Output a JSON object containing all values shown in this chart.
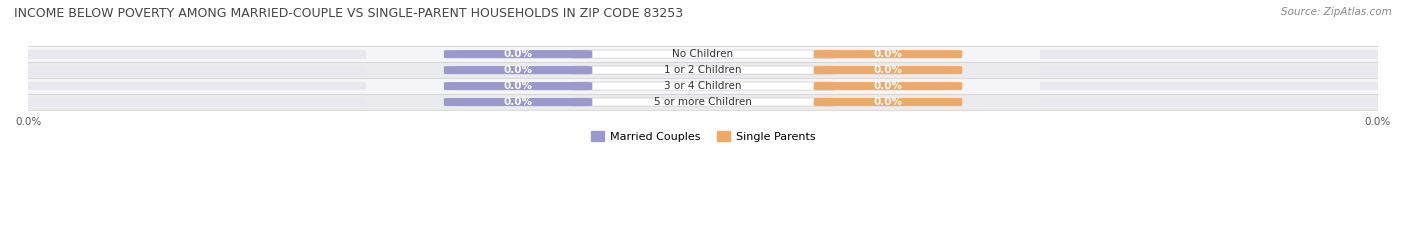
{
  "title": "INCOME BELOW POVERTY AMONG MARRIED-COUPLE VS SINGLE-PARENT HOUSEHOLDS IN ZIP CODE 83253",
  "source": "Source: ZipAtlas.com",
  "categories": [
    "No Children",
    "1 or 2 Children",
    "3 or 4 Children",
    "5 or more Children"
  ],
  "married_values": [
    0.0,
    0.0,
    0.0,
    0.0
  ],
  "single_values": [
    0.0,
    0.0,
    0.0,
    0.0
  ],
  "married_color": "#9999cc",
  "single_color": "#f0a868",
  "bar_bg_color": "#e8e8ee",
  "bar_height": 0.55,
  "label_fontsize": 7.5,
  "title_fontsize": 9,
  "source_fontsize": 7.5,
  "axis_label_fontsize": 7.5,
  "legend_fontsize": 8,
  "background_color": "#ffffff",
  "row_band_color_odd": "#f5f5f7",
  "row_band_color_even": "#ebebee"
}
